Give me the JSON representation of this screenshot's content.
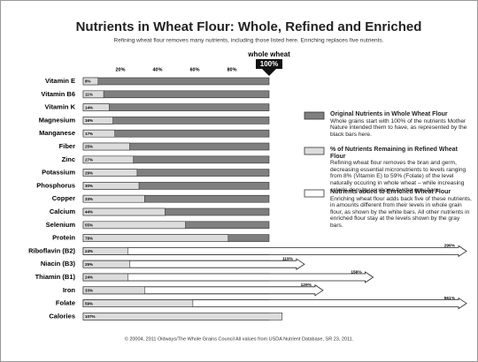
{
  "chart_data": {
    "type": "bar",
    "orientation": "horizontal",
    "title": "Nutrients in Wheat Flour: Whole, Refined and Enriched",
    "subtitle": "Refining wheat flour removes many nutrients, including those listed here. Enriching replaces five nutrients.",
    "reference_label": "whole wheat",
    "reference_value_label": "100%",
    "categories": [
      "Vitamin E",
      "Vitamin B6",
      "Vitamin K",
      "Magnesium",
      "Manganese",
      "Fiber",
      "Zinc",
      "Potassium",
      "Phosphorus",
      "Copper",
      "Calcium",
      "Selenium",
      "Protein",
      "Riboflavin (B2)",
      "Niacin (B3)",
      "Thiamin (B1)",
      "Iron",
      "Folate",
      "Calories"
    ],
    "xlim": [
      0,
      100
    ],
    "xticks": [
      {
        "value": 20,
        "label": "20%"
      },
      {
        "value": 40,
        "label": "40%"
      },
      {
        "value": 60,
        "label": "60%"
      },
      {
        "value": 80,
        "label": "80%"
      }
    ],
    "grid": false,
    "series": [
      {
        "name": "Original Nutrients in Whole Wheat Flour",
        "color": "#7f7f7f",
        "description": "Whole grains start with 100% of the nutrients Mother Nature intended them to have, as represented by the black bars here.",
        "values": [
          100,
          100,
          100,
          100,
          100,
          100,
          100,
          100,
          100,
          100,
          100,
          100,
          100,
          100,
          100,
          100,
          100,
          100,
          100
        ]
      },
      {
        "name": "Nutrients added to Enriched Wheat Flour",
        "color": "#ffffff",
        "description": "Enriching wheat flour adds back five of these nutrients, in amounts different from their levels in whole grain flour, as shown by the white bars. All other nutrients in enriched flour stay at the levels shown by the gray bars.",
        "values": [
          null,
          null,
          null,
          null,
          null,
          null,
          null,
          null,
          null,
          null,
          null,
          null,
          null,
          299,
          119,
          156,
          129,
          561,
          null
        ],
        "value_labels": [
          null,
          null,
          null,
          null,
          null,
          null,
          null,
          null,
          null,
          null,
          null,
          null,
          null,
          "299%",
          "119%",
          "156%",
          "129%",
          "561%",
          null
        ]
      },
      {
        "name": "% of Nutrients Remaining in Refined Wheat Flour",
        "color": "#dcdcdc",
        "description": "Refining wheat flour removes the bran and germ, decreasing essential micronutrients to levels ranging from 8% (Vitamin E) to 59% (Folate) of the level naturally occuring in whole wheat – while increasing calorie density, as shown by the gray bars.",
        "values": [
          8,
          11,
          14,
          16,
          17,
          25,
          27,
          29,
          30,
          33,
          44,
          55,
          78,
          24,
          25,
          24,
          33,
          59,
          107
        ],
        "value_labels": [
          "8%",
          "11%",
          "14%",
          "16%",
          "17%",
          "25%",
          "27%",
          "29%",
          "30%",
          "33%",
          "44%",
          "55%",
          "78%",
          "24%",
          "25%",
          "24%",
          "33%",
          "59%",
          "107%"
        ]
      }
    ],
    "footer": "© 20004, 2011 Oldways/The Whole Grains Council   All values from USDA Nutrient Database, SR 23, 2011."
  }
}
